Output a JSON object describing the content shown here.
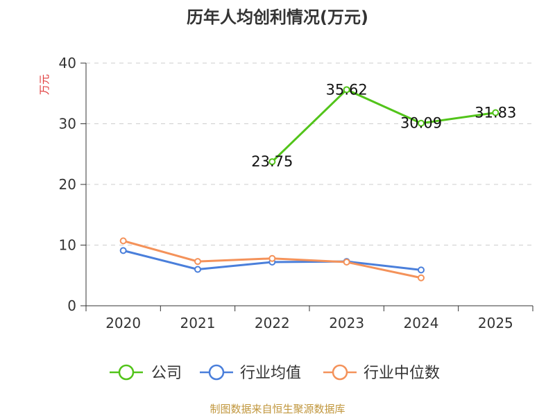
{
  "chart_data": {
    "type": "line",
    "title": "历年人均创利情况(万元)",
    "ylabel": "万元",
    "xlabel": "",
    "ylim": [
      0,
      40
    ],
    "yticks": [
      0,
      10,
      20,
      30,
      40
    ],
    "grid": true,
    "legend_position": "bottom",
    "categories": [
      "2020",
      "2021",
      "2022",
      "2023",
      "2024",
      "2025"
    ],
    "series": [
      {
        "name": "公司",
        "color": "#52c41a",
        "values": [
          null,
          null,
          23.75,
          35.62,
          30.09,
          31.83
        ],
        "labels": [
          "",
          "",
          "23.75",
          "35.62",
          "30.09",
          "31.83"
        ]
      },
      {
        "name": "行业均值",
        "color": "#4a7fdb",
        "values": [
          9.1,
          6.0,
          7.2,
          7.3,
          5.9,
          null
        ],
        "labels": []
      },
      {
        "name": "行业中位数",
        "color": "#f4925a",
        "values": [
          10.7,
          7.3,
          7.8,
          7.2,
          4.6,
          null
        ],
        "labels": []
      }
    ]
  },
  "source": "制图数据来自恒生聚源数据库",
  "colors": {
    "ylabel": "#e03a3a",
    "source": "#c0963c",
    "axis": "#333333",
    "grid": "#cccccc"
  }
}
